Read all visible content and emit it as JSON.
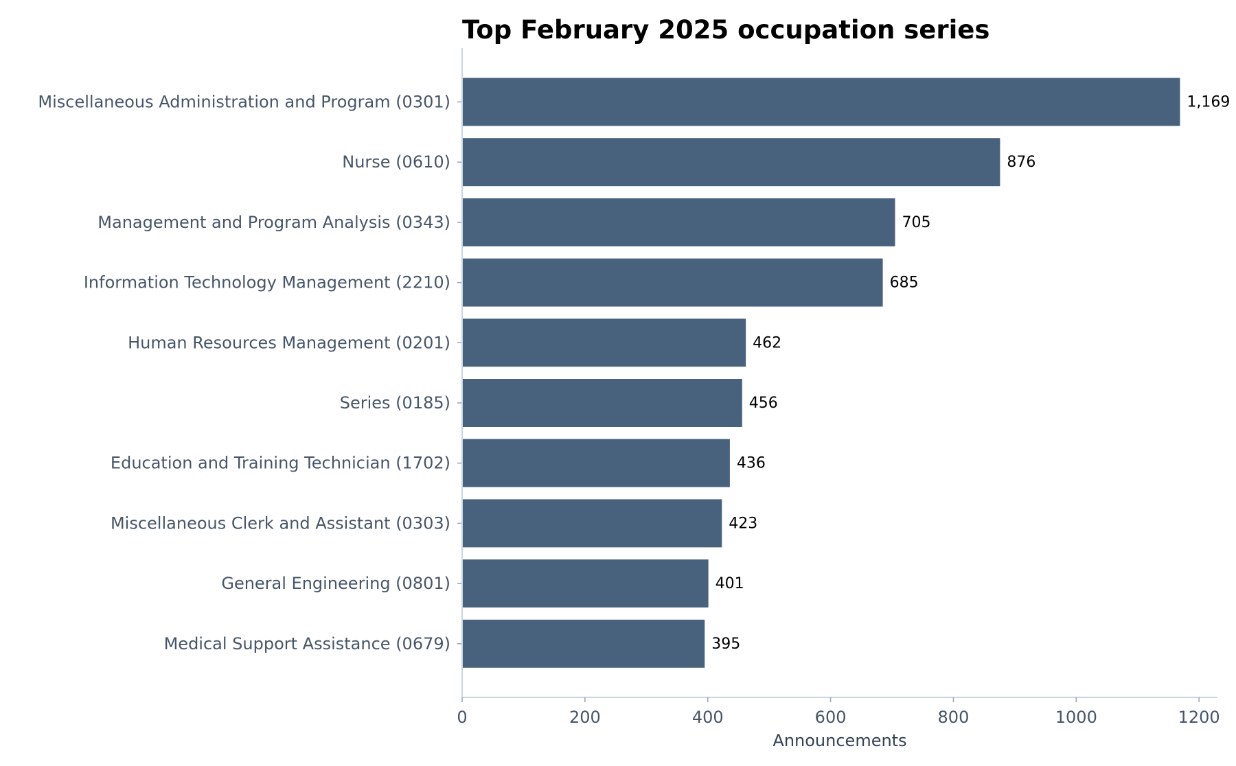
{
  "chart_data": {
    "type": "bar",
    "orientation": "horizontal",
    "title": "Top February 2025 occupation series",
    "xlabel": "Announcements",
    "ylabel": "",
    "xlim": [
      0,
      1230
    ],
    "x_ticks": [
      0,
      200,
      400,
      600,
      800,
      1000,
      1200
    ],
    "x_tick_labels": [
      "0",
      "200",
      "400",
      "600",
      "800",
      "1000",
      "1200"
    ],
    "grid": false,
    "legend": "none",
    "bar_color": "#48627e",
    "categories": [
      "Miscellaneous Administration and Program (0301)",
      "Nurse (0610)",
      "Management and Program Analysis (0343)",
      "Information Technology Management (2210)",
      "Human Resources Management (0201)",
      "Series (0185)",
      "Education and Training Technician (1702)",
      "Miscellaneous Clerk and Assistant (0303)",
      "General Engineering (0801)",
      "Medical Support Assistance (0679)"
    ],
    "values": [
      1169,
      876,
      705,
      685,
      462,
      456,
      436,
      423,
      401,
      395
    ],
    "value_labels": [
      "1,169",
      "876",
      "705",
      "685",
      "462",
      "456",
      "436",
      "423",
      "401",
      "395"
    ]
  }
}
